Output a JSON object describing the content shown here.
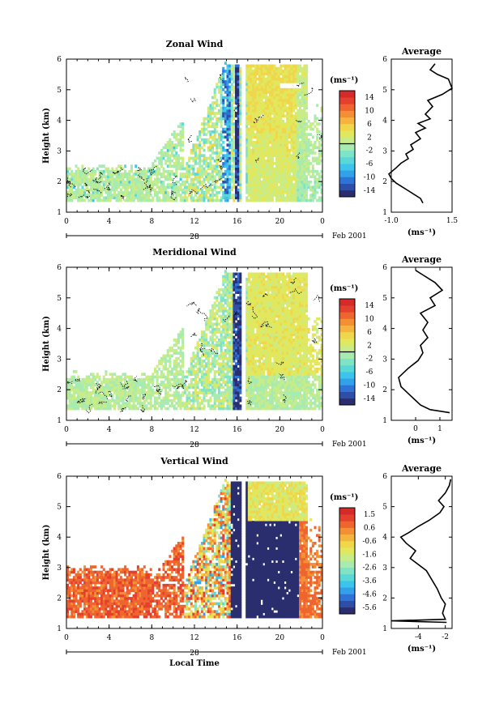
{
  "figure": {
    "x_label": "Local Time",
    "date_label": "28",
    "month_label": "Feb 2001",
    "avg_title": "Average",
    "unit_label": "(ms⁻¹)"
  },
  "chart_data": [
    {
      "type": "heatmap",
      "title": "Zonal Wind",
      "xlabel": "",
      "ylabel": "Height (km)",
      "x_ticks": [
        "0",
        "4",
        "8",
        "12",
        "16",
        "20",
        "0"
      ],
      "xlim": [
        0,
        24
      ],
      "y_ticks": [
        "1",
        "2",
        "3",
        "4",
        "5",
        "6"
      ],
      "ylim": [
        1,
        6
      ],
      "colorbar": {
        "unit": "(ms⁻¹)",
        "ticks": [
          "14",
          "10",
          "6",
          "2",
          "-2",
          "-6",
          "-10",
          "-14"
        ],
        "range": [
          -16,
          16
        ],
        "colors": [
          "#2a2e6e",
          "#2e4fa8",
          "#2f73d6",
          "#33a0ea",
          "#3cc4ec",
          "#5ad8d8",
          "#7fe3c8",
          "#a8ebb0",
          "#c7ec88",
          "#e1e85e",
          "#f0d64a",
          "#f5b43e",
          "#f39036",
          "#ee6530",
          "#e3402e",
          "#d42a2a"
        ],
        "zero_line": true
      },
      "profile": {
        "title": "Average",
        "x_ticks": [
          "-1.0",
          "1.5"
        ],
        "xlim": [
          -1.0,
          1.5
        ],
        "ylim": [
          1,
          6
        ],
        "xlabel": "(ms⁻¹)",
        "points": [
          [
            0.3,
            1.3
          ],
          [
            0.2,
            1.45
          ],
          [
            -0.3,
            1.7
          ],
          [
            -0.8,
            1.95
          ],
          [
            -1.0,
            2.1
          ],
          [
            -1.1,
            2.25
          ],
          [
            -0.8,
            2.45
          ],
          [
            -0.6,
            2.6
          ],
          [
            -0.3,
            2.75
          ],
          [
            -0.4,
            2.9
          ],
          [
            -0.1,
            3.05
          ],
          [
            -0.2,
            3.2
          ],
          [
            0.2,
            3.4
          ],
          [
            0.0,
            3.6
          ],
          [
            0.4,
            3.75
          ],
          [
            0.1,
            3.9
          ],
          [
            0.6,
            4.05
          ],
          [
            0.4,
            4.2
          ],
          [
            0.7,
            4.45
          ],
          [
            0.5,
            4.65
          ],
          [
            1.1,
            4.85
          ],
          [
            1.5,
            5.05
          ],
          [
            1.35,
            5.35
          ],
          [
            0.9,
            5.5
          ],
          [
            0.6,
            5.65
          ],
          [
            0.8,
            5.85
          ]
        ]
      }
    },
    {
      "type": "heatmap",
      "title": "Meridional Wind",
      "xlabel": "",
      "ylabel": "Height (km)",
      "x_ticks": [
        "0",
        "4",
        "8",
        "12",
        "16",
        "20",
        "0"
      ],
      "xlim": [
        0,
        24
      ],
      "y_ticks": [
        "1",
        "2",
        "3",
        "4",
        "5",
        "6"
      ],
      "ylim": [
        1,
        6
      ],
      "colorbar": {
        "unit": "(ms⁻¹)",
        "ticks": [
          "14",
          "10",
          "6",
          "2",
          "-2",
          "-6",
          "-10",
          "-14"
        ],
        "range": [
          -16,
          16
        ],
        "colors": [
          "#2a2e6e",
          "#2e4fa8",
          "#2f73d6",
          "#33a0ea",
          "#3cc4ec",
          "#5ad8d8",
          "#7fe3c8",
          "#a8ebb0",
          "#c7ec88",
          "#e1e85e",
          "#f0d64a",
          "#f5b43e",
          "#f39036",
          "#ee6530",
          "#e3402e",
          "#d42a2a"
        ],
        "zero_line": true
      },
      "profile": {
        "title": "Average",
        "x_ticks": [
          "0",
          "1"
        ],
        "xlim": [
          -1.0,
          1.5
        ],
        "ylim": [
          1,
          6
        ],
        "xlabel": "(ms⁻¹)",
        "points": [
          [
            1.4,
            1.25
          ],
          [
            0.6,
            1.35
          ],
          [
            0.2,
            1.5
          ],
          [
            -0.2,
            1.8
          ],
          [
            -0.6,
            2.1
          ],
          [
            -0.7,
            2.4
          ],
          [
            -0.3,
            2.7
          ],
          [
            0.1,
            2.95
          ],
          [
            0.3,
            3.2
          ],
          [
            0.2,
            3.45
          ],
          [
            0.5,
            3.7
          ],
          [
            0.3,
            3.95
          ],
          [
            0.5,
            4.2
          ],
          [
            0.2,
            4.5
          ],
          [
            0.8,
            4.75
          ],
          [
            0.6,
            5.0
          ],
          [
            1.1,
            5.25
          ],
          [
            0.8,
            5.5
          ],
          [
            0.3,
            5.75
          ],
          [
            0.0,
            5.9
          ]
        ]
      }
    },
    {
      "type": "heatmap",
      "title": "Vertical Wind",
      "xlabel": "Local Time",
      "ylabel": "Height (km)",
      "x_ticks": [
        "0",
        "4",
        "8",
        "12",
        "16",
        "20",
        "0"
      ],
      "xlim": [
        0,
        24
      ],
      "y_ticks": [
        "1",
        "2",
        "3",
        "4",
        "5",
        "6"
      ],
      "ylim": [
        1,
        6
      ],
      "colorbar": {
        "unit": "(ms⁻¹)",
        "ticks": [
          "1.5",
          "0.6",
          "-0.6",
          "-1.6",
          "-2.6",
          "-3.6",
          "-4.6",
          "-5.6"
        ],
        "range": [
          -6.0,
          2.0
        ],
        "colors": [
          "#2a2e6e",
          "#2e4fa8",
          "#2f73d6",
          "#33a0ea",
          "#3cc4ec",
          "#5ad8d8",
          "#7fe3c8",
          "#a8ebb0",
          "#c7ec88",
          "#e1e85e",
          "#f0d64a",
          "#f5b43e",
          "#f39036",
          "#ee6530",
          "#e3402e",
          "#d42a2a"
        ],
        "zero_line": false
      },
      "profile": {
        "title": "Average",
        "x_ticks": [
          "-4",
          "-2"
        ],
        "xlim": [
          -6.0,
          -1.5
        ],
        "ylim": [
          1,
          6
        ],
        "xlabel": "(ms⁻¹)",
        "points": [
          [
            -1.9,
            1.2
          ],
          [
            -6.0,
            1.25
          ],
          [
            -2.0,
            1.3
          ],
          [
            -2.2,
            1.5
          ],
          [
            -2.0,
            1.8
          ],
          [
            -2.3,
            2.0
          ],
          [
            -2.6,
            2.3
          ],
          [
            -3.0,
            2.6
          ],
          [
            -3.4,
            2.9
          ],
          [
            -4.0,
            3.1
          ],
          [
            -4.6,
            3.3
          ],
          [
            -4.2,
            3.55
          ],
          [
            -4.9,
            3.8
          ],
          [
            -5.3,
            4.0
          ],
          [
            -4.7,
            4.15
          ],
          [
            -4.0,
            4.35
          ],
          [
            -3.2,
            4.55
          ],
          [
            -2.4,
            4.8
          ],
          [
            -2.1,
            5.0
          ],
          [
            -2.5,
            5.2
          ],
          [
            -2.0,
            5.45
          ],
          [
            -1.7,
            5.7
          ],
          [
            -1.6,
            5.9
          ]
        ]
      }
    }
  ]
}
